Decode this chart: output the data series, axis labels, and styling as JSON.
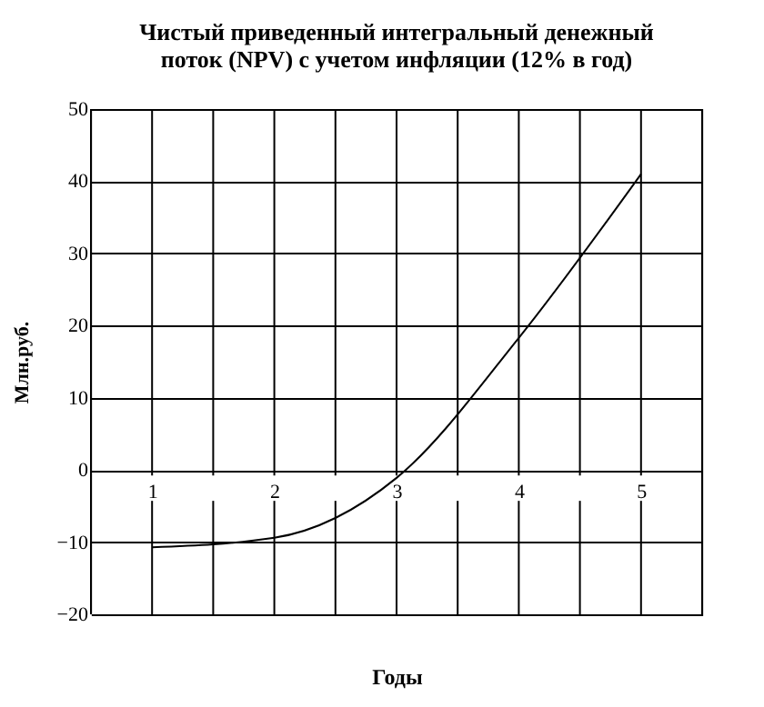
{
  "chart_data": {
    "type": "line",
    "title": [
      "Чистый приведенный интегральный денежный",
      "поток (NPV) с учетом инфляции (12% в год)"
    ],
    "xlabel": "Годы",
    "ylabel": "Млн.руб.",
    "x": [
      1,
      2,
      3,
      4,
      5
    ],
    "series": [
      {
        "color": "#000000",
        "values": [
          -10.7,
          -9.4,
          -1.1,
          18.3,
          41.0
        ]
      }
    ],
    "xlim": [
      0.5,
      5.5
    ],
    "xticks": [
      {
        "value": 0.5,
        "label": null
      },
      1,
      {
        "value": 1.5,
        "label": null
      },
      2,
      {
        "value": 2.5,
        "label": null
      },
      3,
      {
        "value": 3.5,
        "label": null
      },
      4,
      {
        "value": 4.5,
        "label": null
      },
      5,
      {
        "value": 5.5,
        "label": null
      }
    ],
    "ylim": [
      -20,
      50
    ],
    "yticks": [
      -20,
      -10,
      0,
      10,
      20,
      30,
      40,
      50
    ],
    "grid": true,
    "marker": "none",
    "line_style": "solid",
    "legend": false
  }
}
